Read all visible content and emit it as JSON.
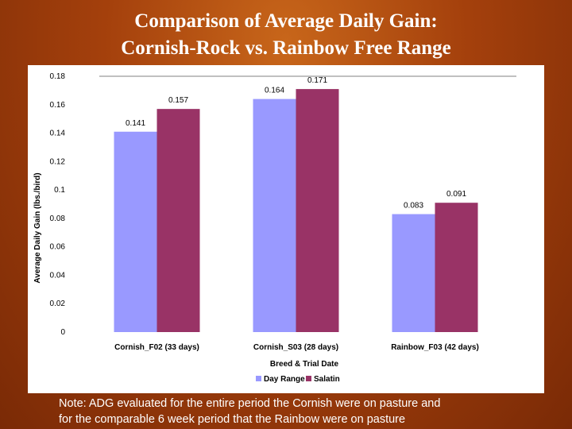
{
  "slide": {
    "title_line1": "Comparison of Average Daily Gain:",
    "title_line2": "Cornish-Rock vs. Rainbow Free Range",
    "note_line1": "Note:  ADG evaluated for the entire period the Cornish were on pasture and",
    "note_line2": "for the comparable 6 week period that the Rainbow were on pasture"
  },
  "colors": {
    "background": "#a4400c",
    "day_range": "#9999ff",
    "salatin": "#993366"
  },
  "chart_data": {
    "type": "bar",
    "title": "",
    "xlabel": "Breed & Trial Date",
    "ylabel": "Average Daily Gain (lbs./bird)",
    "ylim": [
      0,
      0.18
    ],
    "yticks": [
      "0",
      "0.02",
      "0.04",
      "0.06",
      "0.08",
      "0.1",
      "0.12",
      "0.14",
      "0.16",
      "0.18"
    ],
    "categories": [
      "Cornish_F02 (33 days)",
      "Cornish_S03 (28 days)",
      "Rainbow_F03 (42 days)"
    ],
    "series": [
      {
        "name": "Day Range",
        "values": [
          0.141,
          0.164,
          0.083
        ],
        "labels": [
          "0.141",
          "0.164",
          "0.083"
        ],
        "color": "#9999ff"
      },
      {
        "name": "Salatin",
        "values": [
          0.157,
          0.171,
          0.091
        ],
        "labels": [
          "0.157",
          "0.171",
          "0.091"
        ],
        "color": "#993366"
      }
    ],
    "grid": false,
    "legend_position": "bottom"
  }
}
